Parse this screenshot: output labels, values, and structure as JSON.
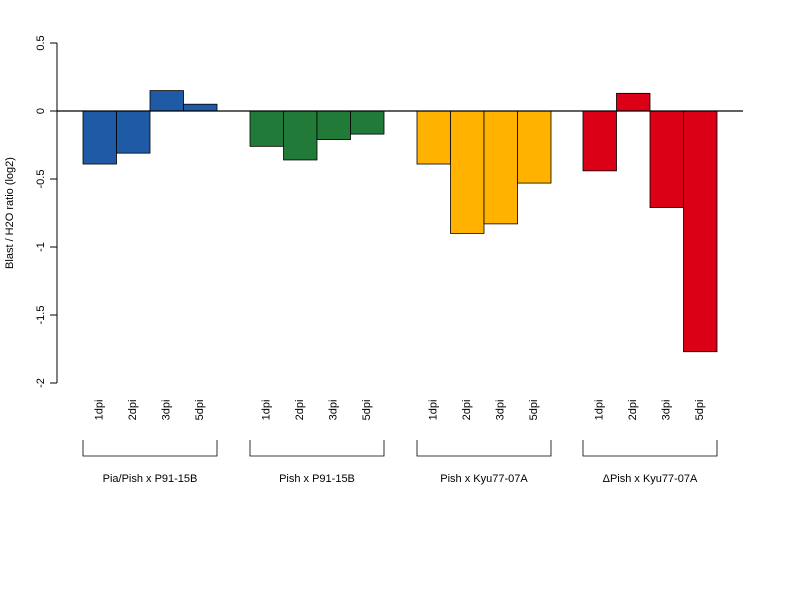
{
  "chart_data": {
    "type": "bar",
    "title": "",
    "xlabel": "",
    "ylabel": "Blast / H2O ratio (log2)",
    "ylim": [
      -2,
      0.5
    ],
    "yticks": [
      0.5,
      0,
      -0.5,
      -1,
      -1.5,
      -2
    ],
    "ytick_labels": [
      "0.5",
      "0",
      "-0.5",
      "-1",
      "-1.5",
      "-2"
    ],
    "grid": false,
    "legend": "none",
    "zero_line": true,
    "groups": [
      {
        "label": "Pia/Pish x P91-15B",
        "color": "#1f5aa6",
        "categories": [
          "1dpi",
          "2dpi",
          "3dpi",
          "5dpi"
        ],
        "values": [
          -0.39,
          -0.31,
          0.15,
          0.05
        ]
      },
      {
        "label": "Pish x P91-15B",
        "color": "#217a38",
        "categories": [
          "1dpi",
          "2dpi",
          "3dpi",
          "5dpi"
        ],
        "values": [
          -0.26,
          -0.36,
          -0.21,
          -0.17
        ]
      },
      {
        "label": "Pish x Kyu77-07A",
        "color": "#ffb300",
        "categories": [
          "1dpi",
          "2dpi",
          "3dpi",
          "5dpi"
        ],
        "values": [
          -0.39,
          -0.9,
          -0.83,
          -0.53
        ]
      },
      {
        "label": "ΔPish x Kyu77-07A",
        "color": "#dc0016",
        "categories": [
          "1dpi",
          "2dpi",
          "3dpi",
          "5dpi"
        ],
        "values": [
          -0.44,
          0.13,
          -0.71,
          -1.77
        ]
      }
    ]
  }
}
